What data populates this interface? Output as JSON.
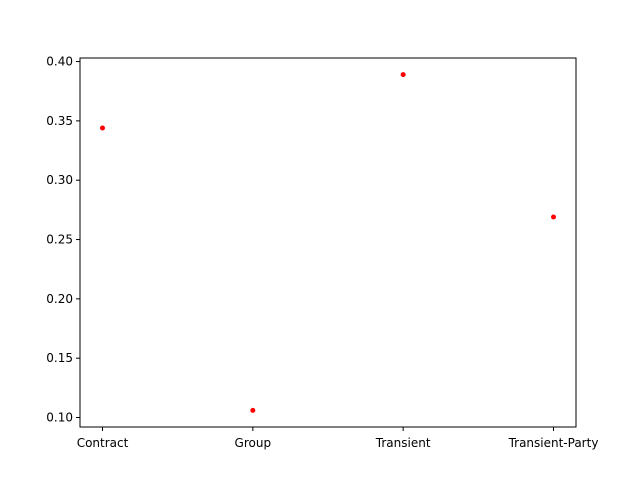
{
  "chart_data": {
    "type": "scatter",
    "categories": [
      "Contract",
      "Group",
      "Transient",
      "Transient-Party"
    ],
    "values": [
      0.344,
      0.106,
      0.389,
      0.269
    ],
    "ylim": [
      0.092,
      0.403
    ],
    "yticks": [
      "0.10",
      "0.15",
      "0.20",
      "0.25",
      "0.30",
      "0.35",
      "0.40"
    ],
    "ytick_values": [
      0.1,
      0.15,
      0.2,
      0.25,
      0.3,
      0.35,
      0.4
    ],
    "title": "",
    "xlabel": "",
    "ylabel": "",
    "grid": false,
    "marker_color": "#ff0000"
  }
}
